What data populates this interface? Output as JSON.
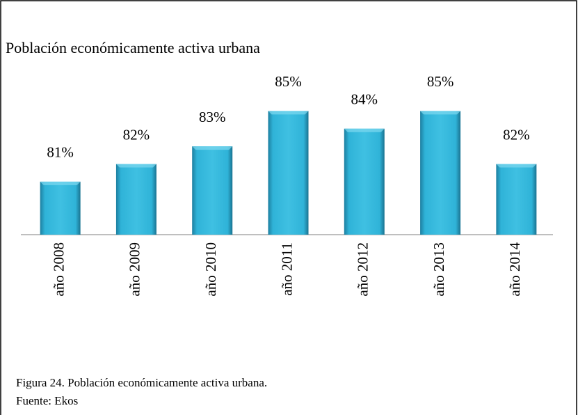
{
  "chart_data": {
    "type": "bar",
    "title": "Población económicamente activa  urbana",
    "categories": [
      "año 2008",
      "año 2009",
      "año 2010",
      "año 2011",
      "año 2012",
      "año 2013",
      "año 2014"
    ],
    "values": [
      81,
      82,
      83,
      85,
      84,
      85,
      82
    ],
    "value_labels": [
      "81%",
      "82%",
      "83%",
      "85%",
      "84%",
      "85%",
      "82%"
    ],
    "color": "#2fb3d8",
    "ylim": [
      78,
      86
    ]
  },
  "caption": {
    "figure": "Figura 24. Población económicamente activa  urbana.",
    "source": "Fuente: Ekos"
  }
}
